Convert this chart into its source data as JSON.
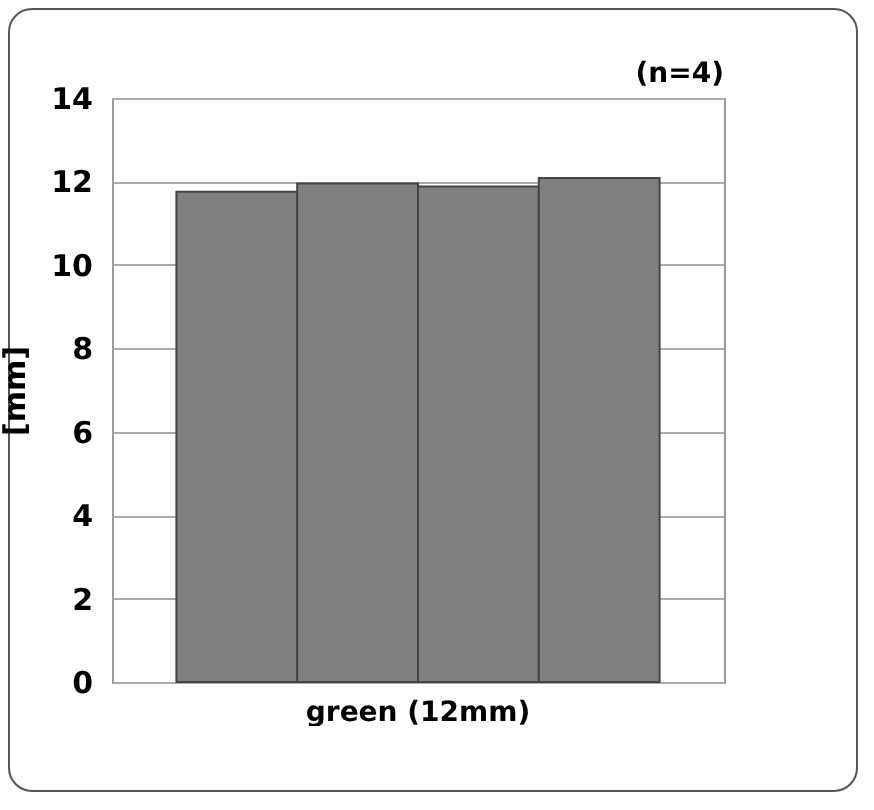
{
  "chart_data": {
    "type": "bar",
    "ylabel": "[mm]",
    "annotations": [
      "(n=4)"
    ],
    "categories": [
      "green (12mm)"
    ],
    "series": [
      {
        "color": "#808080",
        "values": [
          11.75
        ]
      },
      {
        "color": "#808080",
        "values": [
          11.95
        ]
      },
      {
        "color": "#808080",
        "values": [
          11.88
        ]
      },
      {
        "color": "#808080",
        "values": [
          12.08
        ]
      }
    ],
    "ylim": [
      0,
      14
    ],
    "yticks": [
      0,
      2,
      4,
      6,
      8,
      10,
      12,
      14
    ],
    "grid": "y",
    "legend": false
  }
}
